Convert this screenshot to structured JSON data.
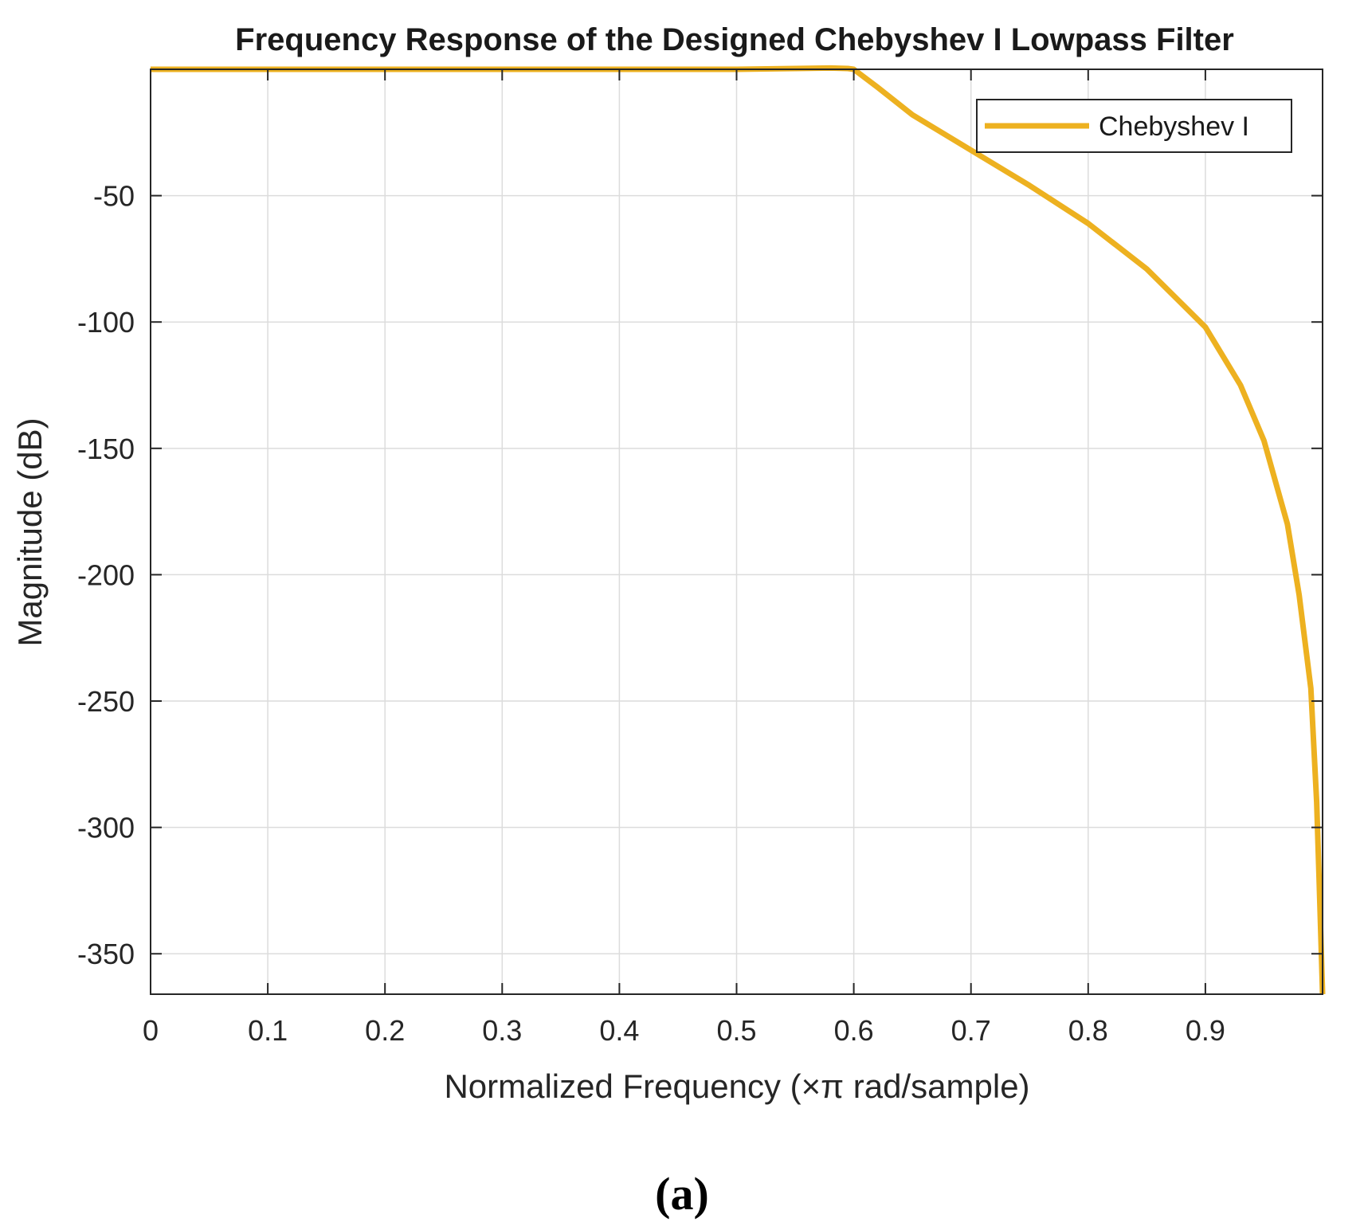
{
  "chart_data": {
    "type": "line",
    "title": "Frequency Response of the Designed Chebyshev I Lowpass Filter",
    "xlabel": "Normalized Frequency (×π rad/sample)",
    "ylabel": "Magnitude (dB)",
    "xlim": [
      0,
      1
    ],
    "ylim": [
      -366,
      0
    ],
    "grid": true,
    "legend_position": "top-right",
    "x_ticks": [
      {
        "value": 0,
        "label": "0"
      },
      {
        "value": 0.1,
        "label": "0.1"
      },
      {
        "value": 0.2,
        "label": "0.2"
      },
      {
        "value": 0.3,
        "label": "0.3"
      },
      {
        "value": 0.4,
        "label": "0.4"
      },
      {
        "value": 0.5,
        "label": "0.5"
      },
      {
        "value": 0.6,
        "label": "0.6"
      },
      {
        "value": 0.7,
        "label": "0.7"
      },
      {
        "value": 0.8,
        "label": "0.8"
      },
      {
        "value": 0.9,
        "label": "0.9"
      }
    ],
    "y_ticks": [
      {
        "value": -50,
        "label": "-50"
      },
      {
        "value": -100,
        "label": "-100"
      },
      {
        "value": -150,
        "label": "-150"
      },
      {
        "value": -200,
        "label": "-200"
      },
      {
        "value": -250,
        "label": "-250"
      },
      {
        "value": -300,
        "label": "-300"
      },
      {
        "value": -350,
        "label": "-350"
      }
    ],
    "series": [
      {
        "name": "Chebyshev I",
        "color": "#EDB120",
        "x": [
          0,
          0.1,
          0.2,
          0.3,
          0.4,
          0.5,
          0.58,
          0.595,
          0.6,
          0.62,
          0.65,
          0.7,
          0.75,
          0.8,
          0.85,
          0.9,
          0.93,
          0.95,
          0.97,
          0.98,
          0.99,
          0.995,
          0.997,
          0.999,
          1.0
        ],
        "y": [
          0,
          0,
          0,
          0,
          0,
          0,
          0.5,
          0.3,
          0,
          -7,
          -18,
          -32,
          -46,
          -61,
          -79,
          -102,
          -125,
          -147,
          -180,
          -208,
          -245,
          -290,
          -320,
          -350,
          -366
        ]
      }
    ]
  },
  "caption": "(a)"
}
